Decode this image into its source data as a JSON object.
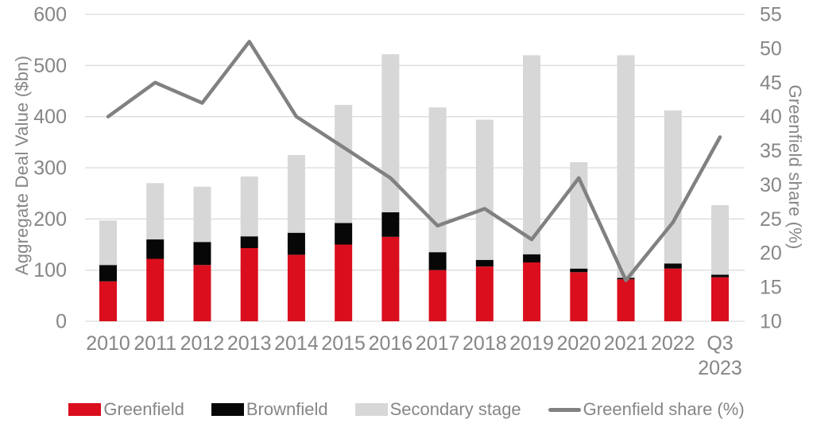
{
  "chart_data": {
    "type": "bar",
    "subtype": "stacked-column-with-line",
    "title": "",
    "categories": [
      "2010",
      "2011",
      "2012",
      "2013",
      "2014",
      "2015",
      "2016",
      "2017",
      "2018",
      "2019",
      "2020",
      "2021",
      "2022",
      "Q3 2023"
    ],
    "bar_series": [
      {
        "name": "Greenfield",
        "color": "#da0e1d",
        "values": [
          78,
          122,
          110,
          143,
          130,
          150,
          165,
          100,
          107,
          115,
          96,
          82,
          103,
          86
        ]
      },
      {
        "name": "Brownfield",
        "color": "#070707",
        "values": [
          32,
          38,
          45,
          23,
          43,
          42,
          48,
          35,
          13,
          16,
          7,
          3,
          10,
          5
        ]
      },
      {
        "name": "Secondary stage",
        "color": "#d7d7d7",
        "values": [
          87,
          110,
          108,
          117,
          152,
          231,
          309,
          283,
          274,
          389,
          208,
          435,
          299,
          136
        ]
      }
    ],
    "bar_totals": [
      197,
      270,
      263,
      283,
      325,
      423,
      522,
      418,
      394,
      520,
      311,
      520,
      412,
      227
    ],
    "line_series": {
      "name": "Greenfield share (%)",
      "color": "#818181",
      "axis": "right",
      "values": [
        40,
        45,
        42,
        51,
        40,
        35.5,
        31,
        24,
        26.5,
        22,
        31,
        16,
        24.5,
        37
      ]
    },
    "left_axis": {
      "title": "Aggregate Deal Value ($bn)",
      "min": 0,
      "max": 600,
      "step": 100,
      "ticks": [
        0,
        100,
        200,
        300,
        400,
        500,
        600
      ]
    },
    "right_axis": {
      "title": "Greenfield share (%)",
      "min": 10,
      "max": 55,
      "step": 5,
      "ticks": [
        10,
        15,
        20,
        25,
        30,
        35,
        40,
        45,
        50,
        55
      ]
    },
    "grid": true,
    "gridline_color": "#dcdcdc",
    "tick_label_color": "#868686",
    "legend_position": "bottom"
  }
}
